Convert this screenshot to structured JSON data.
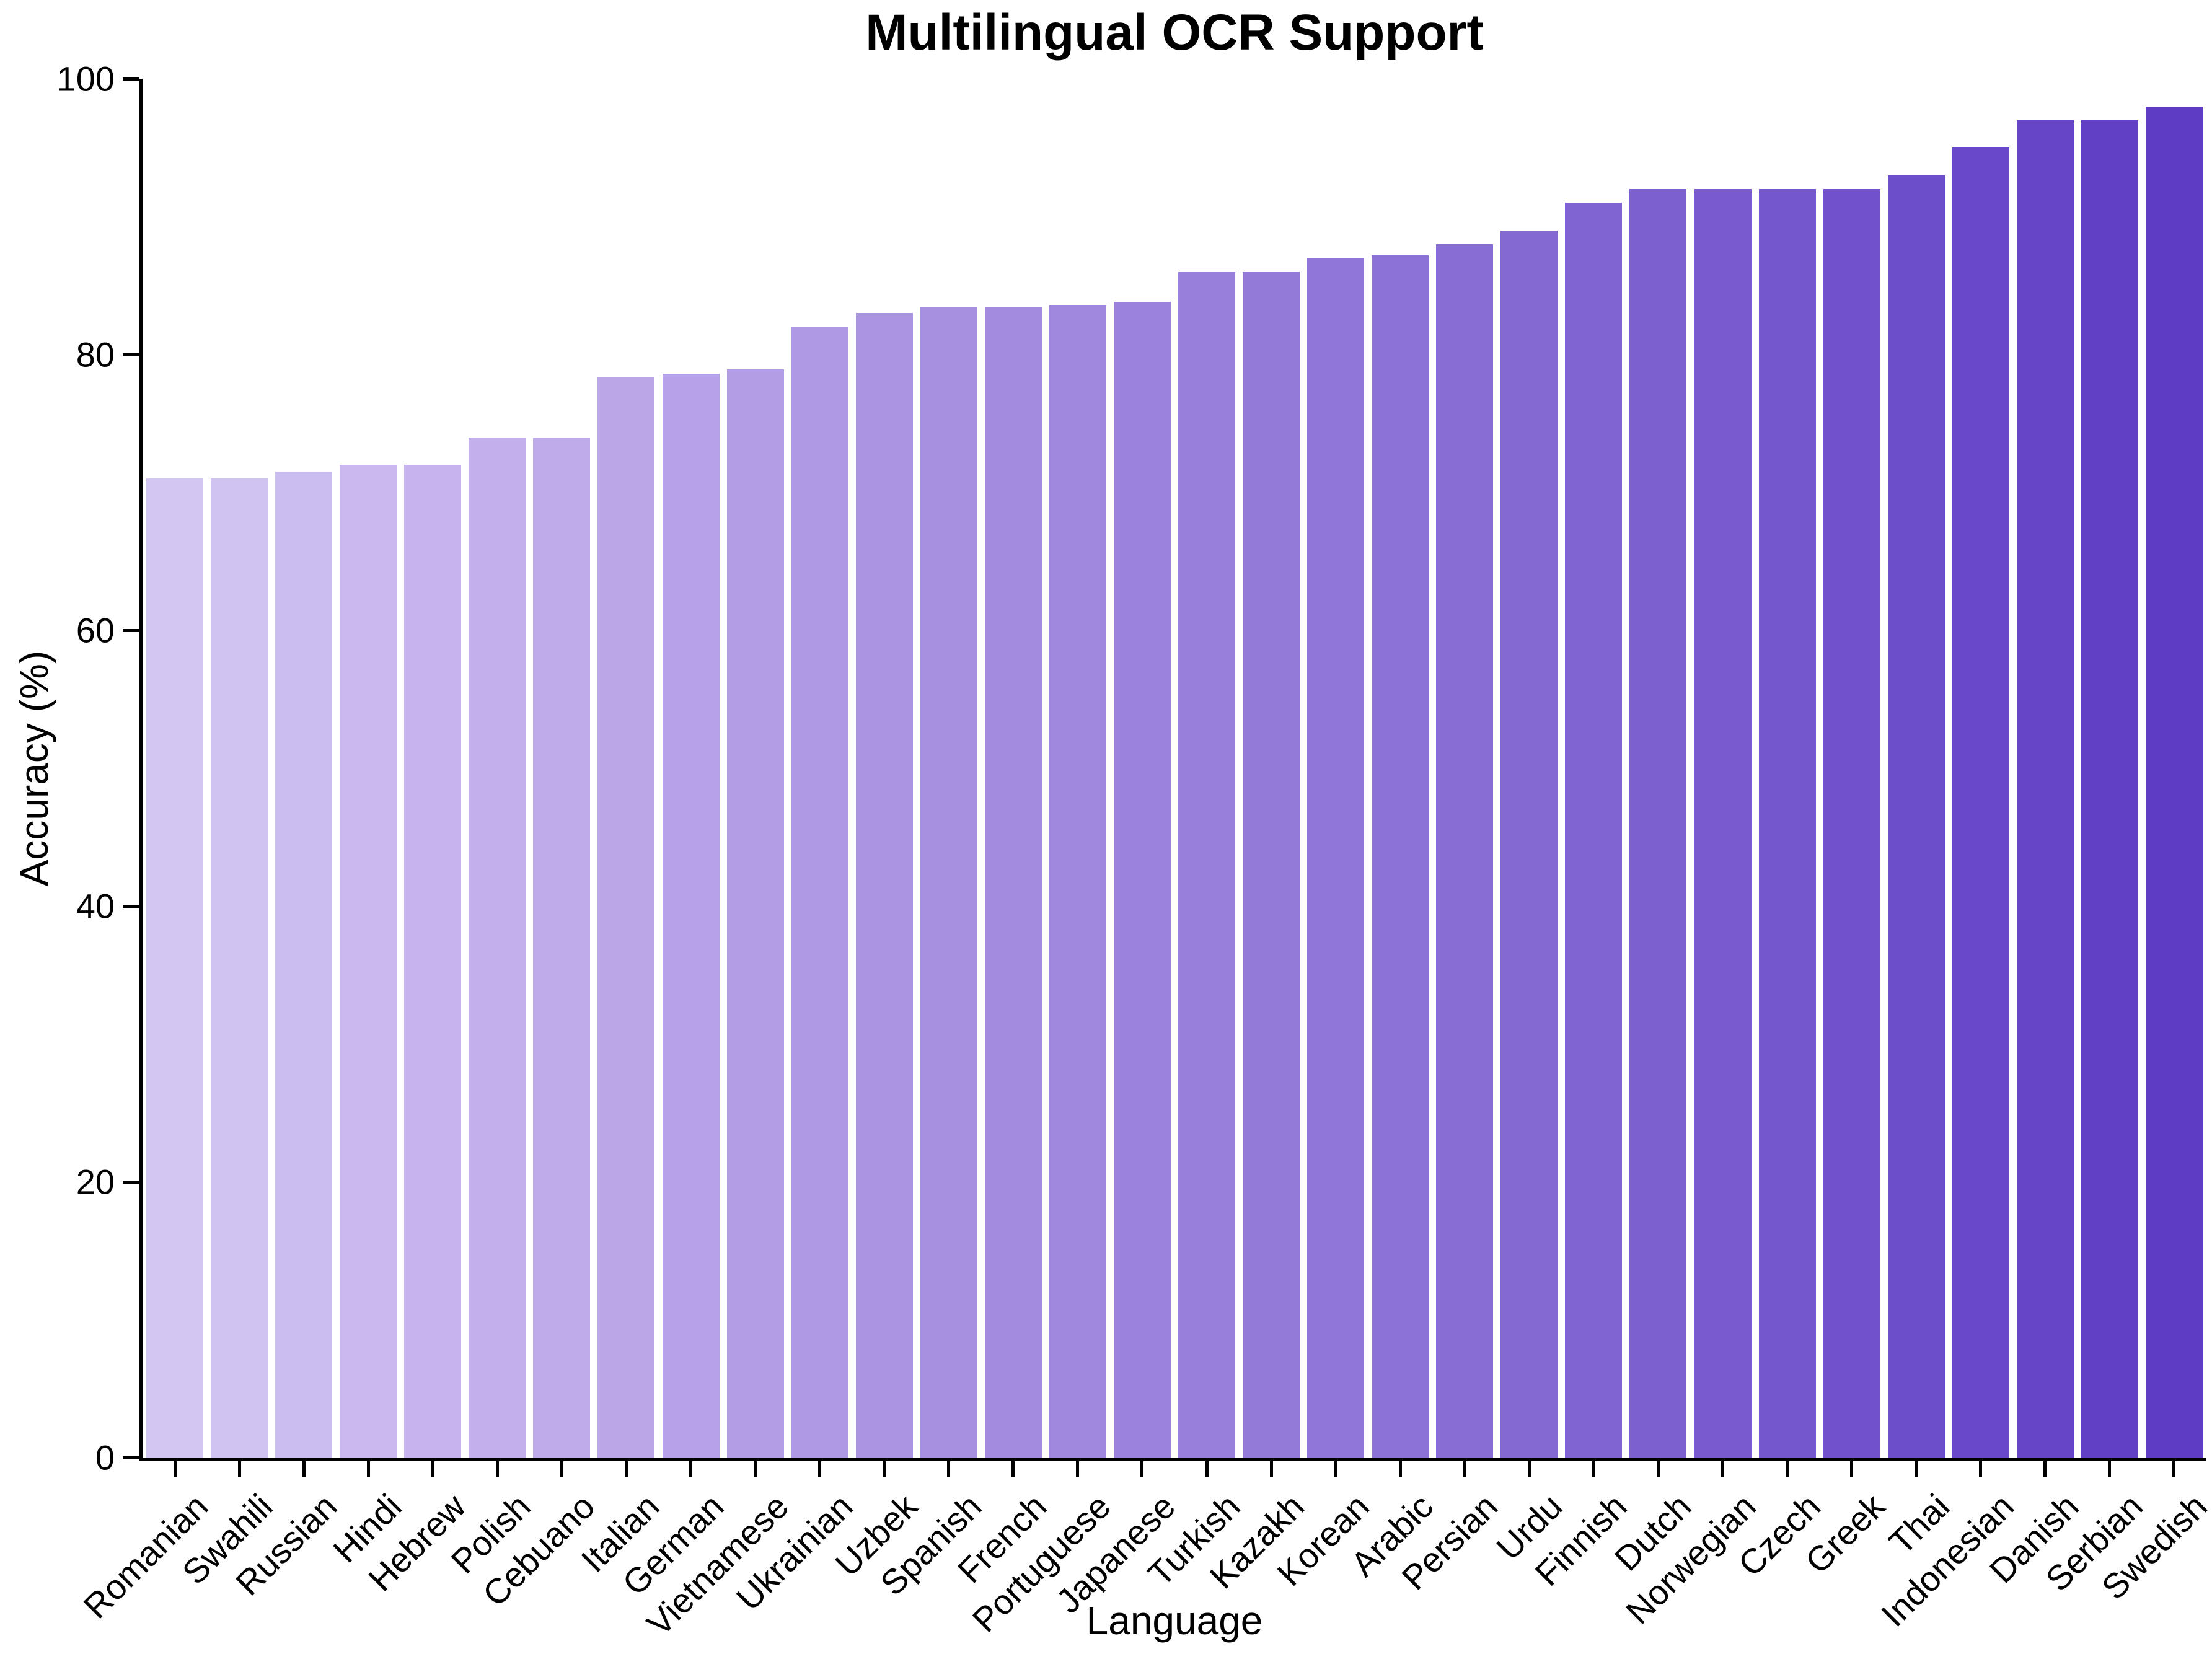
{
  "chart_data": {
    "type": "bar",
    "title": "Multilingual OCR Support",
    "xlabel": "Language",
    "ylabel": "Accuracy (%)",
    "ylim": [
      0,
      100
    ],
    "yticks": [
      0,
      20,
      40,
      60,
      80,
      100
    ],
    "grid": false,
    "legend": "none",
    "bar_color_start": "#d4c6f3",
    "bar_color_end": "#5e3cc4",
    "categories": [
      "Romanian",
      "Swahili",
      "Russian",
      "Hindi",
      "Hebrew",
      "Polish",
      "Cebuano",
      "Italian",
      "German",
      "Vietnamese",
      "Ukrainian",
      "Uzbek",
      "Spanish",
      "French",
      "Portuguese",
      "Japanese",
      "Turkish",
      "Kazakh",
      "Korean",
      "Arabic",
      "Persian",
      "Urdu",
      "Finnish",
      "Dutch",
      "Norwegian",
      "Czech",
      "Greek",
      "Thai",
      "Indonesian",
      "Danish",
      "Serbian",
      "Swedish"
    ],
    "values": [
      71,
      71,
      71.5,
      72,
      72,
      74,
      74,
      78.4,
      78.6,
      78.9,
      82,
      83,
      83.4,
      83.4,
      83.6,
      83.8,
      86,
      86,
      87,
      87.2,
      88,
      89,
      91,
      92,
      92,
      92,
      92,
      93,
      95,
      97,
      97,
      98
    ]
  }
}
